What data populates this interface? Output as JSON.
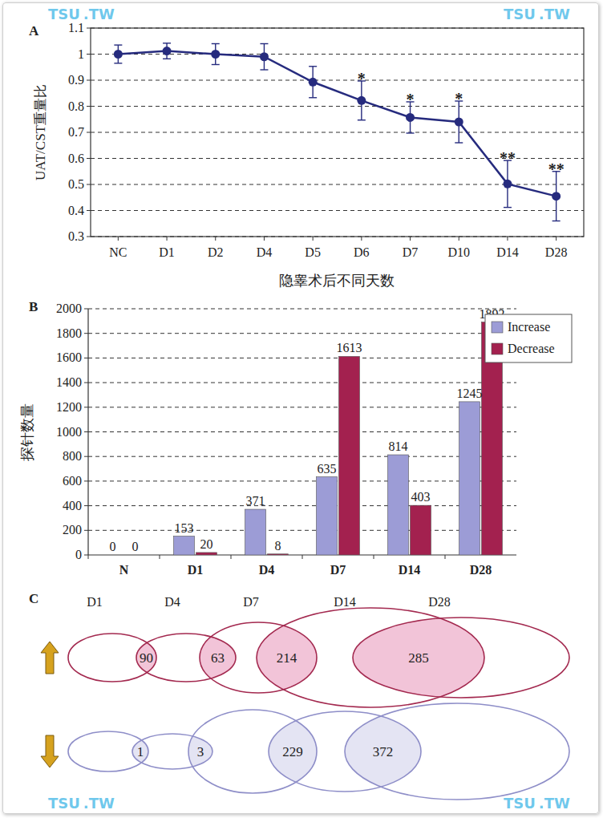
{
  "chart_data": [
    {
      "type": "line",
      "panel": "A",
      "categories": [
        "NC",
        "D1",
        "D2",
        "D4",
        "D5",
        "D6",
        "D7",
        "D10",
        "D14",
        "D28"
      ],
      "values": [
        1.0,
        1.012,
        1.0,
        0.99,
        0.893,
        0.822,
        0.757,
        0.74,
        0.502,
        0.455
      ],
      "errors": [
        0.035,
        0.03,
        0.04,
        0.05,
        0.06,
        0.075,
        0.06,
        0.08,
        0.09,
        0.095
      ],
      "annotations": [
        null,
        null,
        null,
        null,
        null,
        "*",
        "*",
        "*",
        "**",
        "**"
      ],
      "ylim": [
        0.3,
        1.1
      ],
      "yticks": [
        0.3,
        0.4,
        0.5,
        0.6,
        0.7,
        0.8,
        0.9,
        1,
        1.1
      ],
      "grid": true,
      "marker": "circle",
      "color": "#262b7e",
      "xlabel": "隐睾术后不同天数",
      "ylabel": "UAT/CST重量比"
    },
    {
      "type": "bar",
      "panel": "B",
      "categories": [
        "N",
        "D1",
        "D4",
        "D7",
        "D14",
        "D28"
      ],
      "series": [
        {
          "name": "Increase",
          "color": "#9c9cd6",
          "values": [
            0,
            153,
            371,
            635,
            814,
            1245
          ]
        },
        {
          "name": "Decrease",
          "color": "#a3214f",
          "values": [
            0,
            20,
            8,
            1613,
            403,
            1892
          ]
        }
      ],
      "ylim": [
        0,
        2000
      ],
      "yticks": [
        0,
        200,
        400,
        600,
        800,
        1000,
        1200,
        1400,
        1600,
        1800,
        2000
      ],
      "grid": true,
      "data_labels": true,
      "legend": "top-right",
      "ylabel": "探针数量"
    },
    {
      "type": "venn",
      "panel": "C",
      "sets": [
        "D1",
        "D4",
        "D7",
        "D14",
        "D28"
      ],
      "rows": [
        {
          "direction": "up",
          "color": "#a3294f",
          "overlaps": [
            90,
            63,
            214,
            285
          ]
        },
        {
          "direction": "down",
          "color": "#8e8ec8",
          "overlaps": [
            1,
            3,
            229,
            372
          ]
        }
      ]
    }
  ],
  "watermark": [
    "TSU",
    ".TW"
  ]
}
